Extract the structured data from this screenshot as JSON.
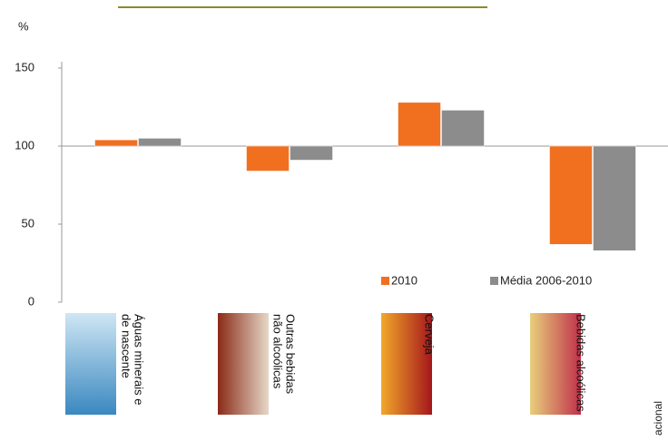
{
  "chart_data": {
    "type": "bar",
    "y_label": "%",
    "categories": [
      "Águas minerais e de nascente",
      "Outras bebidas não alcoólicas",
      "Cerveja",
      "Bebidas alcoólicas"
    ],
    "series": [
      {
        "name": "2010",
        "color": "#f07020",
        "values": [
          104,
          84,
          128,
          37
        ]
      },
      {
        "name": "Média 2006-2010",
        "color": "#8c8c8c",
        "values": [
          105,
          91,
          123,
          33
        ]
      }
    ],
    "bar_base": 100,
    "ylim": [
      0,
      150
    ],
    "yticks": [
      0,
      50,
      100,
      150
    ],
    "side_note": "acional"
  }
}
